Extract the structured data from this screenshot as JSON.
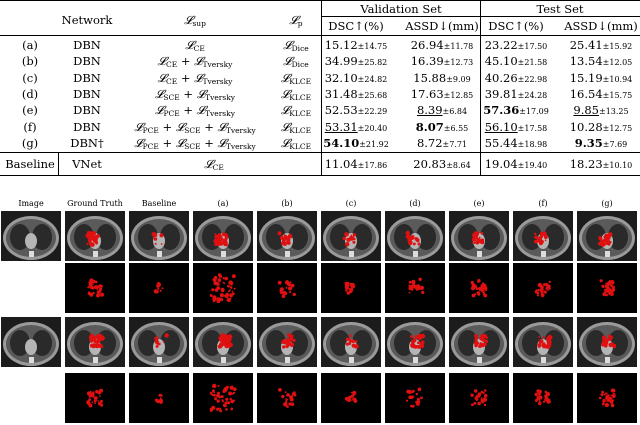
{
  "table": {
    "headers": {
      "network": "Network",
      "lsup": "𝓛",
      "lsup_sub": "sup",
      "lp": "𝓛",
      "lp_sub": "p",
      "validation_set": "Validation Set",
      "test_set": "Test Set",
      "dsc": "DSC↑(%)",
      "assd": "ASSD↓(mm)"
    },
    "rows": [
      {
        "id": "(a)",
        "network": "DBN",
        "lsup": [
          [
            "CE"
          ]
        ],
        "lp": "Dice",
        "val_dsc": "15.12",
        "val_dsc_pm": "±14.75",
        "val_assd": "26.94",
        "val_assd_pm": "±11.78",
        "test_dsc": "23.22",
        "test_dsc_pm": "±17.50",
        "test_assd": "25.41",
        "test_assd_pm": "±15.92"
      },
      {
        "id": "(b)",
        "network": "DBN",
        "lsup": [
          [
            "CE"
          ],
          [
            "Tversky"
          ]
        ],
        "lp": "Dice",
        "val_dsc": "34.99",
        "val_dsc_pm": "±25.82",
        "val_assd": "16.39",
        "val_assd_pm": "±12.73",
        "test_dsc": "45.10",
        "test_dsc_pm": "±21.58",
        "test_assd": "13.54",
        "test_assd_pm": "±12.05"
      },
      {
        "id": "(c)",
        "network": "DBN",
        "lsup": [
          [
            "CE"
          ],
          [
            "Tversky"
          ]
        ],
        "lp": "KLCE",
        "val_dsc": "32.10",
        "val_dsc_pm": "±24.82",
        "val_assd": "15.88",
        "val_assd_pm": "±9.09",
        "test_dsc": "40.26",
        "test_dsc_pm": "±22.98",
        "test_assd": "15.19",
        "test_assd_pm": "±10.94"
      },
      {
        "id": "(d)",
        "network": "DBN",
        "lsup": [
          [
            "SCE"
          ],
          [
            "Tversky"
          ]
        ],
        "lp": "KLCE",
        "val_dsc": "31.48",
        "val_dsc_pm": "±25.68",
        "val_assd": "17.63",
        "val_assd_pm": "±12.85",
        "test_dsc": "39.81",
        "test_dsc_pm": "±24.28",
        "test_assd": "16.54",
        "test_assd_pm": "±15.75"
      },
      {
        "id": "(e)",
        "network": "DBN",
        "lsup": [
          [
            "PCE"
          ],
          [
            "Tversky"
          ]
        ],
        "lp": "KLCE",
        "val_dsc": "52.53",
        "val_dsc_pm": "±22.29",
        "val_assd": "8.39",
        "val_assd_pm": "±6.84",
        "test_dsc": "57.36",
        "test_dsc_pm": "±17.09",
        "test_assd": "9.85",
        "test_assd_pm": "±13.25"
      },
      {
        "id": "(f)",
        "network": "DBN",
        "lsup": [
          [
            "PCE"
          ],
          [
            "SCE"
          ],
          [
            "Tversky"
          ]
        ],
        "lp": "KLCE",
        "val_dsc": "53.31",
        "val_dsc_pm": "±20.40",
        "val_assd": "8.07",
        "val_assd_pm": "±6.55",
        "test_dsc": "56.10",
        "test_dsc_pm": "±17.58",
        "test_assd": "10.28",
        "test_assd_pm": "±12.75"
      },
      {
        "id": "(g)",
        "network": "DBN†",
        "lsup": [
          [
            "PCE"
          ],
          [
            "SCE"
          ],
          [
            "Tversky"
          ]
        ],
        "lp": "KLCE",
        "val_dsc": "54.10",
        "val_dsc_pm": "±21.92",
        "val_assd": "8.72",
        "val_assd_pm": "±7.71",
        "test_dsc": "55.44",
        "test_dsc_pm": "±18.98",
        "test_assd": "9.35",
        "test_assd_pm": "±7.69"
      }
    ],
    "baseline": {
      "label": "Baseline",
      "network": "VNet",
      "lsup": "CE",
      "val_dsc": "11.04",
      "val_dsc_pm": "±17.86",
      "val_assd": "20.83",
      "val_assd_pm": "±8.64",
      "test_dsc": "19.04",
      "test_dsc_pm": "±19.40",
      "test_assd": "18.23",
      "test_assd_pm": "±10.10"
    }
  },
  "figure": {
    "columns": [
      "Image",
      "Ground Truth",
      "Baseline",
      "(a)",
      "(b)",
      "(c)",
      "(d)",
      "(e)",
      "(f)",
      "(g)"
    ],
    "colors": {
      "lesion": "#e01010",
      "ct_bg": "#1a1a1a",
      "mask_bg": "#000000"
    }
  }
}
